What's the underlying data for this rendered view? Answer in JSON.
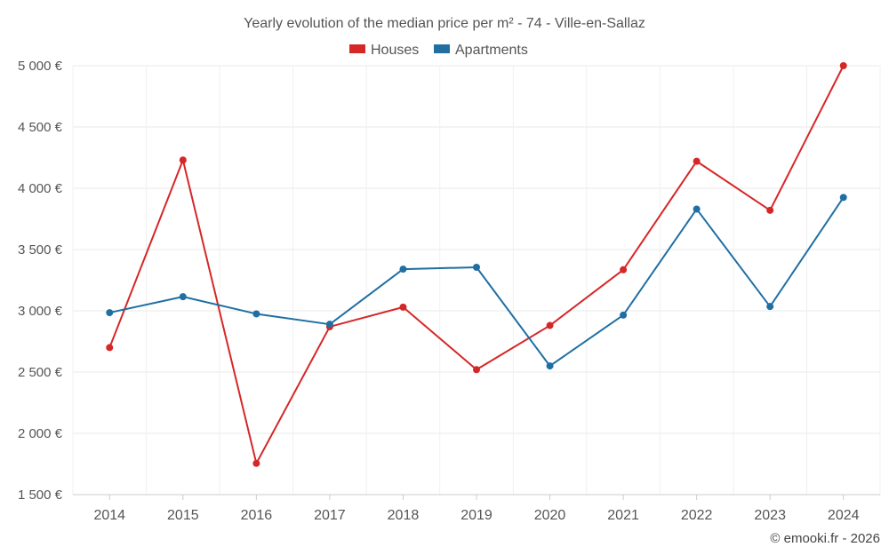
{
  "chart_data": {
    "type": "line",
    "title": "Yearly evolution of the median price per m² - 74 - Ville-en-Sallaz",
    "categories": [
      "2014",
      "2015",
      "2016",
      "2017",
      "2018",
      "2019",
      "2020",
      "2021",
      "2022",
      "2023",
      "2024"
    ],
    "series": [
      {
        "name": "Houses",
        "color": "#d62728",
        "values": [
          2700,
          4230,
          1755,
          2870,
          3030,
          2520,
          2880,
          3335,
          4220,
          3820,
          5000
        ]
      },
      {
        "name": "Apartments",
        "color": "#1f6fa3",
        "values": [
          2985,
          3115,
          2975,
          2890,
          3340,
          3355,
          2550,
          2965,
          3830,
          3035,
          3925
        ]
      }
    ],
    "ylim": [
      1500,
      5000
    ],
    "yticks": [
      1500,
      2000,
      2500,
      3000,
      3500,
      4000,
      4500,
      5000
    ],
    "ytick_labels": [
      "1 500 €",
      "2 000 €",
      "2 500 €",
      "3 000 €",
      "3 500 €",
      "4 000 €",
      "4 500 €",
      "5 000 €"
    ],
    "xlabel": "",
    "ylabel": "",
    "grid": true,
    "legend_position": "top-center"
  },
  "credit": "© emooki.fr - 2026"
}
